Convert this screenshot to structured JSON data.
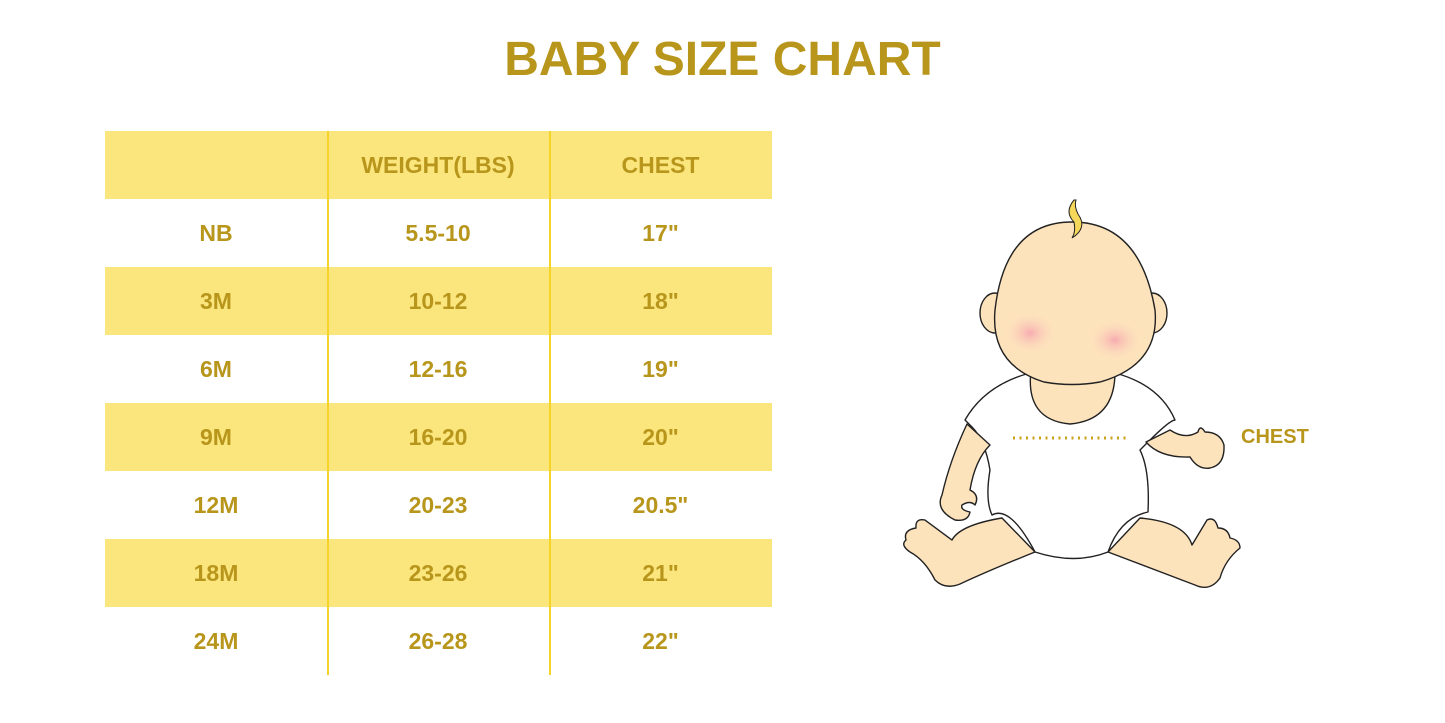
{
  "title": "BABY SIZE CHART",
  "table": {
    "headers": [
      "",
      "WEIGHT(LBS)",
      "CHEST"
    ],
    "rows": [
      [
        "NB",
        "5.5-10",
        "17\""
      ],
      [
        "3M",
        "10-12",
        "18\""
      ],
      [
        "6M",
        "12-16",
        "19\""
      ],
      [
        "9M",
        "16-20",
        "20\""
      ],
      [
        "12M",
        "20-23",
        "20.5\""
      ],
      [
        "18M",
        "23-26",
        "21\""
      ],
      [
        "24M",
        "26-28",
        "22\""
      ]
    ]
  },
  "illustration": {
    "chest_label": "CHEST"
  },
  "colors": {
    "accent": "#B8961C",
    "band": "#FBE57D",
    "skin": "#FDE3BC"
  }
}
